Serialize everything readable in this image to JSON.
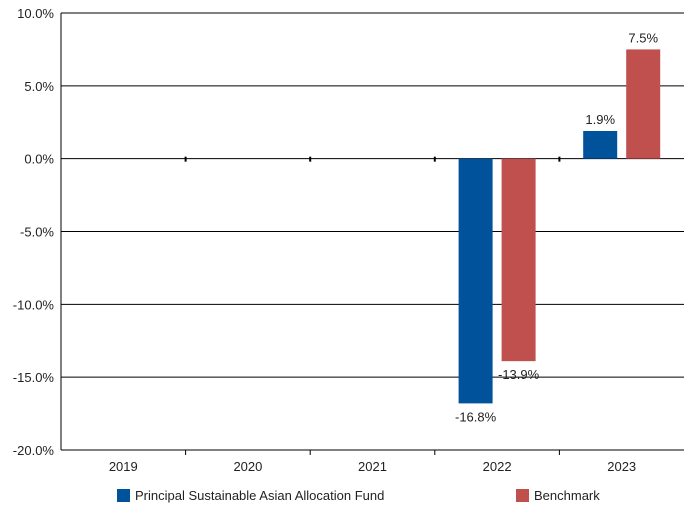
{
  "chart_data": {
    "type": "bar",
    "categories": [
      "2019",
      "2020",
      "2021",
      "2022",
      "2023"
    ],
    "series": [
      {
        "name": "Principal Sustainable Asian Allocation Fund",
        "color": "#00539b",
        "values": [
          null,
          null,
          null,
          -16.8,
          1.9
        ],
        "labels": [
          "",
          "",
          "",
          "-16.8%",
          "1.9%"
        ]
      },
      {
        "name": "Benchmark",
        "color": "#c0504d",
        "values": [
          null,
          null,
          null,
          -13.9,
          7.5
        ],
        "labels": [
          "",
          "",
          "",
          "-13.9%",
          "7.5%"
        ]
      }
    ],
    "ylim": [
      -20,
      10
    ],
    "yticks": [
      10,
      5,
      0,
      -5,
      -10,
      -15,
      -20
    ],
    "ytick_labels": [
      "10.0%",
      "5.0%",
      "0.0%",
      "-5.0%",
      "-10.0%",
      "-15.0%",
      "-20.0%"
    ],
    "grid": true,
    "legend_position": "bottom"
  }
}
